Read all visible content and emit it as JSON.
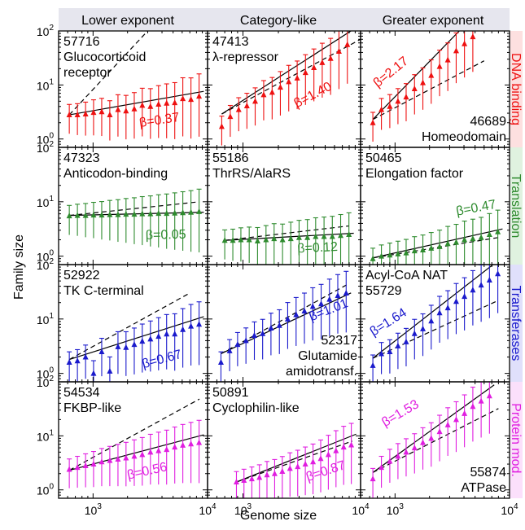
{
  "figure": {
    "xlabel": "Genome size",
    "ylabel": "Family size",
    "col_headers": [
      "Lower exponent",
      "Category-like",
      "Greater exponent"
    ],
    "row_headers": [
      "DNA binding",
      "Translation",
      "Transferases",
      "Protein mod."
    ],
    "row_colors": [
      "#ee1111",
      "#2e8b2e",
      "#1a1acc",
      "#e01ee0"
    ],
    "row_header_bg": [
      "#fde0e0",
      "#e0f2e0",
      "#e0e0fb",
      "#fbe0fb"
    ],
    "col_header_bg": "#e6e6ee",
    "x_ticks": [
      {
        "label": "10",
        "exp": "3",
        "value": 1000
      },
      {
        "label": "10",
        "exp": "4",
        "value": 10000
      }
    ],
    "y_ticks": [
      {
        "label": "10",
        "exp": "0",
        "value": 1
      },
      {
        "label": "10",
        "exp": "1",
        "value": 10
      },
      {
        "label": "10",
        "exp": "2",
        "value": 100
      }
    ]
  },
  "chart_data": [
    {
      "type": "scatter",
      "row": 0,
      "col": 0,
      "id": "57716",
      "name": [
        "Glucocorticoid",
        "receptor"
      ],
      "beta": 0.37,
      "beta_label": "β=0.37",
      "xlim": [
        500,
        10000
      ],
      "ylim": [
        0.7,
        100
      ],
      "xscale": "log",
      "yscale": "log",
      "x": [
        620,
        730,
        860,
        1010,
        1190,
        1400,
        1650,
        1940,
        2290,
        2690,
        3170,
        3730,
        4390,
        5170,
        6080,
        7160,
        8430
      ],
      "y": [
        2.8,
        2.8,
        2.9,
        3.1,
        3.2,
        2.8,
        3.5,
        3.3,
        3.6,
        4.2,
        4.0,
        4.4,
        4.6,
        4.7,
        5.6,
        5.4,
        6.2
      ],
      "fit_start": [
        620,
        2.8
      ],
      "ref_end": [
        3000,
        100
      ]
    },
    {
      "type": "scatter",
      "row": 0,
      "col": 1,
      "id": "47413",
      "name": [
        "λ-repressor"
      ],
      "beta": 1.4,
      "beta_label": "β=1.40",
      "xlim": [
        500,
        10000
      ],
      "ylim": [
        0.7,
        100
      ],
      "xscale": "log",
      "yscale": "log",
      "x": [
        660,
        780,
        920,
        1080,
        1270,
        1500,
        1770,
        2080,
        2450,
        2890,
        3400,
        4010,
        4720,
        5560,
        6550,
        7720
      ],
      "y": [
        1.7,
        2.6,
        3.5,
        4.1,
        5.0,
        6.6,
        7.3,
        9.1,
        11.5,
        13.4,
        17.0,
        21.0,
        26.0,
        31.0,
        42.0,
        56.0
      ],
      "fit_start": [
        660,
        2.9
      ],
      "ref_end": [
        10000,
        70
      ]
    },
    {
      "type": "scatter",
      "row": 0,
      "col": 2,
      "id": "46689",
      "name": [
        "Homeodomain"
      ],
      "beta": 2.17,
      "beta_label": "β=2.17",
      "xlim": [
        500,
        10000
      ],
      "ylim": [
        0.7,
        100
      ],
      "xscale": "log",
      "yscale": "log",
      "x": [
        640,
        760,
        900,
        1060,
        1250,
        1480,
        1750,
        2070,
        2450,
        2890,
        3420,
        4040,
        4780
      ],
      "y": [
        2.0,
        3.5,
        4.0,
        5.0,
        6.0,
        8.5,
        11.0,
        15.0,
        22.0,
        29.0,
        43.0,
        58.0,
        78.0
      ],
      "fit_start": [
        640,
        2.3
      ],
      "ref_end": [
        6000,
        28
      ]
    },
    {
      "type": "scatter",
      "row": 1,
      "col": 0,
      "id": "47323",
      "name": [
        "Anticodon-binding"
      ],
      "beta": 0.05,
      "beta_label": "β=0.05",
      "xlim": [
        500,
        10000
      ],
      "ylim": [
        0.7,
        100
      ],
      "xscale": "log",
      "yscale": "log",
      "x": [
        620,
        730,
        860,
        1010,
        1190,
        1400,
        1650,
        1940,
        2290,
        2690,
        3170,
        3730,
        4390,
        5170,
        6080,
        7160,
        8430
      ],
      "y": [
        5.5,
        5.6,
        5.6,
        5.7,
        5.7,
        5.8,
        5.8,
        5.9,
        5.9,
        6.0,
        6.0,
        6.1,
        6.1,
        6.2,
        6.3,
        6.4,
        6.6
      ],
      "fit_start": [
        620,
        5.6
      ],
      "ref_end": [
        8500,
        10
      ]
    },
    {
      "type": "scatter",
      "row": 1,
      "col": 1,
      "id": "55186",
      "name": [
        "ThrRS/AlaRS"
      ],
      "beta": 0.12,
      "beta_label": "β=0.12",
      "xlim": [
        500,
        10000
      ],
      "ylim": [
        0.7,
        100
      ],
      "xscale": "log",
      "yscale": "log",
      "x": [
        700,
        820,
        960,
        1130,
        1330,
        1570,
        1840,
        2170,
        2550,
        3000,
        3530,
        4150,
        4890,
        5750,
        6770,
        7960
      ],
      "y": [
        1.95,
        1.95,
        2.0,
        2.0,
        1.9,
        2.0,
        2.1,
        2.0,
        2.1,
        2.2,
        2.2,
        2.3,
        2.3,
        2.3,
        2.4,
        2.5
      ],
      "fit_start": [
        700,
        1.95
      ],
      "ref_end": [
        8000,
        3.6
      ]
    },
    {
      "type": "scatter",
      "row": 1,
      "col": 2,
      "id": "50465",
      "name": [
        "Elongation factor"
      ],
      "beta": 0.47,
      "beta_label": "β=0.47",
      "xlim": [
        500,
        10000
      ],
      "ylim": [
        0.7,
        100
      ],
      "xscale": "log",
      "yscale": "log",
      "x": [
        640,
        760,
        900,
        1060,
        1250,
        1480,
        1750,
        2070,
        2450,
        2890,
        3420,
        4040,
        4780,
        5650,
        6680,
        7900
      ],
      "y": [
        0.9,
        1.0,
        1.05,
        1.1,
        1.15,
        1.25,
        1.3,
        1.4,
        1.5,
        1.7,
        1.8,
        2.0,
        2.1,
        2.2,
        2.5,
        2.8
      ],
      "fit_start": [
        640,
        0.93
      ],
      "ref_end": [
        8000,
        2.2
      ]
    },
    {
      "type": "scatter",
      "row": 2,
      "col": 0,
      "id": "52922",
      "name": [
        "TK C-terminal"
      ],
      "beta": 0.67,
      "beta_label": "β=0.67",
      "xlim": [
        500,
        10000
      ],
      "ylim": [
        0.7,
        100
      ],
      "xscale": "log",
      "yscale": "log",
      "x": [
        620,
        730,
        860,
        1010,
        1190,
        1400,
        1650,
        1940,
        2290,
        2690,
        3170,
        3730,
        4390,
        5170,
        6080,
        7160,
        8430
      ],
      "y": [
        1.6,
        1.7,
        2.0,
        1.0,
        2.5,
        1.1,
        3.1,
        3.0,
        3.4,
        3.9,
        4.3,
        4.8,
        5.3,
        5.3,
        6.4,
        7.4,
        8.0
      ],
      "fit_start": [
        620,
        1.8
      ],
      "ref_end": [
        7000,
        30
      ]
    },
    {
      "type": "scatter",
      "row": 2,
      "col": 1,
      "id": "52317",
      "name": [
        "Glutamide",
        "amidotransf."
      ],
      "beta": 1.01,
      "beta_label": "β=1.01",
      "xlim": [
        500,
        10000
      ],
      "ylim": [
        0.7,
        100
      ],
      "xscale": "log",
      "yscale": "log",
      "x": [
        650,
        770,
        900,
        1060,
        1250,
        1470,
        1730,
        2040,
        2400,
        2830,
        3330,
        3920,
        4620,
        5440,
        6400,
        7540
      ],
      "y": [
        1.6,
        2.6,
        3.4,
        4.0,
        5.0,
        5.4,
        6.8,
        7.6,
        10.0,
        12.0,
        14.0,
        17.0,
        19.0,
        23.0,
        27.0,
        30.0
      ],
      "fit_start": [
        650,
        2.3
      ],
      "ref_end": [
        8000,
        45
      ]
    },
    {
      "type": "scatter",
      "row": 2,
      "col": 2,
      "id": "55729",
      "name": [
        "Acyl-CoA NAT"
      ],
      "beta": 1.64,
      "beta_label": "β=1.64",
      "xlim": [
        500,
        10000
      ],
      "ylim": [
        0.7,
        100
      ],
      "xscale": "log",
      "yscale": "log",
      "x": [
        640,
        760,
        900,
        1060,
        1250,
        1480,
        1750,
        2070,
        2450,
        2890,
        3420,
        4040,
        4780,
        5650,
        6680,
        7900
      ],
      "y": [
        1.4,
        2.3,
        2.5,
        3.2,
        3.8,
        5.4,
        6.6,
        9.2,
        13.0,
        16.0,
        21.0,
        26.0,
        34.0,
        42.0,
        52.0,
        68.0
      ],
      "fit_start": [
        640,
        1.9
      ],
      "ref_end": [
        8000,
        22
      ]
    },
    {
      "type": "scatter",
      "row": 3,
      "col": 0,
      "id": "54534",
      "name": [
        "FKBP-like"
      ],
      "beta": 0.56,
      "beta_label": "β=0.56",
      "xlim": [
        500,
        10000
      ],
      "ylim": [
        0.7,
        100
      ],
      "xscale": "log",
      "yscale": "log",
      "x": [
        620,
        730,
        860,
        1010,
        1190,
        1400,
        1650,
        1940,
        2290,
        2690,
        3170,
        3730,
        4390,
        5170,
        6080,
        7160,
        8430
      ],
      "y": [
        2.4,
        2.6,
        2.8,
        3.0,
        3.3,
        3.5,
        3.7,
        3.9,
        4.2,
        4.5,
        5.0,
        5.3,
        5.6,
        6.2,
        6.7,
        7.1,
        7.5
      ],
      "fit_start": [
        620,
        2.3
      ],
      "ref_end": [
        8500,
        48
      ]
    },
    {
      "type": "scatter",
      "row": 3,
      "col": 1,
      "id": "50891",
      "name": [
        "Cyclophilin-like"
      ],
      "beta": 0.87,
      "beta_label": "β=0.87",
      "xlim": [
        500,
        10000
      ],
      "ylim": [
        0.7,
        100
      ],
      "xscale": "log",
      "yscale": "log",
      "x": [
        880,
        1020,
        1190,
        1380,
        1600,
        1860,
        2160,
        2510,
        2920,
        3390,
        3940,
        4580,
        5320,
        6180,
        7180,
        8340
      ],
      "y": [
        1.4,
        1.5,
        1.6,
        1.7,
        1.9,
        2.0,
        2.2,
        2.5,
        2.7,
        3.0,
        3.3,
        3.8,
        4.5,
        5.3,
        6.2,
        6.8
      ],
      "fit_start": [
        880,
        1.4
      ],
      "ref_end": [
        8500,
        8
      ]
    },
    {
      "type": "scatter",
      "row": 3,
      "col": 2,
      "id": "55874",
      "name": [
        "ATPase"
      ],
      "beta": 1.53,
      "beta_label": "β=1.53",
      "xlim": [
        500,
        10000
      ],
      "ylim": [
        0.7,
        100
      ],
      "xscale": "log",
      "yscale": "log",
      "x": [
        640,
        760,
        900,
        1060,
        1250,
        1480,
        1750,
        2070,
        2450,
        2890,
        3420,
        4040,
        4780,
        5650,
        6680
      ],
      "y": [
        1.6,
        2.6,
        3.4,
        4.2,
        5.0,
        6.0,
        7.5,
        9.0,
        12.0,
        16.0,
        20.0,
        26.0,
        35.0,
        44.0,
        55.0
      ],
      "fit_start": [
        640,
        2.1
      ],
      "ref_end": [
        8000,
        32
      ]
    }
  ]
}
